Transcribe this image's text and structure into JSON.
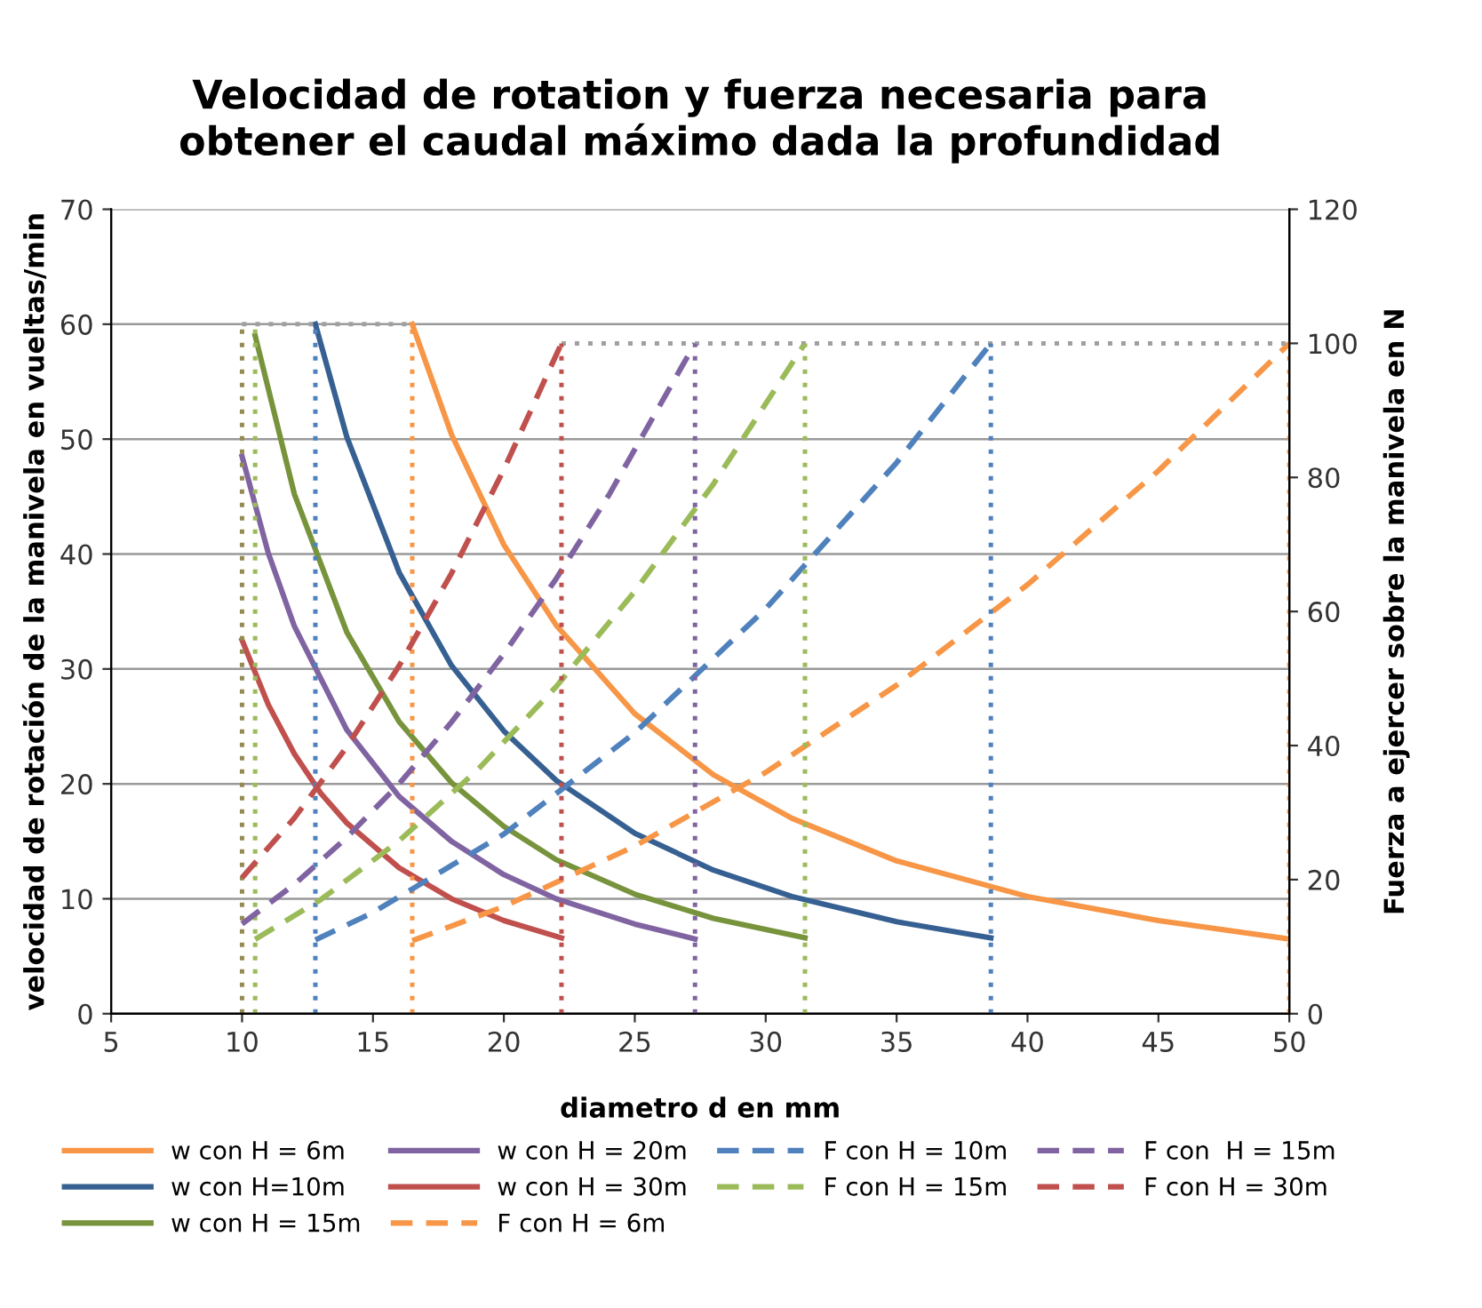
{
  "chart_data": {
    "type": "line",
    "title": "Velocidad de rotation y fuerza necesaria para\nobtener el caudal máximo dada la profundidad",
    "xlabel": "diametro d en mm",
    "ylabel": "velocidad de rotación de la manivela en vueltas/min",
    "y2label": "Fuerza a ejercer sobre la manivela en N",
    "xlim": [
      5,
      50
    ],
    "xticks": [
      5,
      10,
      15,
      20,
      25,
      30,
      35,
      40,
      45,
      50
    ],
    "ylim": [
      0,
      70
    ],
    "yticks": [
      0,
      10,
      20,
      30,
      40,
      50,
      60,
      70
    ],
    "y2lim": [
      0,
      120
    ],
    "y2ticks": [
      0,
      20,
      40,
      60,
      80,
      100,
      120
    ],
    "grid": "y",
    "legend": "bottom",
    "marker": "none",
    "series": [
      {
        "name": "w con H = 6m",
        "color": "#f79646",
        "line_style": "solid",
        "x": [
          16.5,
          18,
          20,
          22,
          25,
          28,
          31,
          35,
          40,
          45,
          50
        ],
        "values": [
          60,
          50.4,
          40.8,
          33.8,
          26.1,
          20.8,
          17.0,
          13.3,
          10.2,
          8.1,
          6.5
        ]
      },
      {
        "name": "w con H=10m",
        "color": "#376092",
        "line_style": "solid",
        "x": [
          12.8,
          14,
          16,
          18,
          20,
          22,
          25,
          28,
          31,
          35,
          38.6
        ],
        "values": [
          60,
          50.2,
          38.4,
          30.3,
          24.6,
          20.3,
          15.7,
          12.5,
          10.2,
          8.0,
          6.6
        ]
      },
      {
        "name": "w con H = 15m",
        "color": "#77933c",
        "line_style": "solid",
        "x": [
          10.5,
          12,
          14,
          16,
          18,
          20,
          22,
          25,
          28,
          31.5
        ],
        "values": [
          59,
          45.2,
          33.2,
          25.4,
          20.1,
          16.3,
          13.4,
          10.4,
          8.3,
          6.6
        ]
      },
      {
        "name": "w con H = 20m",
        "color": "#8064a2",
        "line_style": "solid",
        "x": [
          10,
          11,
          12,
          14,
          16,
          18,
          20,
          22,
          25,
          27.3
        ],
        "values": [
          48.5,
          40.1,
          33.7,
          24.7,
          18.9,
          15.0,
          12.1,
          10.0,
          7.8,
          6.5
        ]
      },
      {
        "name": "w con H = 30m",
        "color": "#c0504d",
        "line_style": "solid",
        "x": [
          10,
          11,
          12,
          13,
          14,
          16,
          18,
          20,
          22.2
        ],
        "values": [
          32.5,
          26.9,
          22.6,
          19.2,
          16.6,
          12.7,
          10.0,
          8.1,
          6.6
        ]
      },
      {
        "name": "F con H = 6m",
        "color": "#f79646",
        "line_style": "dashed",
        "axis": "y2",
        "x": [
          16.5,
          20,
          25,
          30,
          35,
          40,
          45,
          50
        ],
        "values": [
          10.9,
          16,
          25,
          36,
          49,
          64,
          81,
          100
        ]
      },
      {
        "name": "F con H = 10m",
        "color": "#4f81bd",
        "line_style": "dashed",
        "axis": "y2",
        "x": [
          12.8,
          15,
          20,
          25,
          30,
          35,
          38.6
        ],
        "values": [
          11,
          15.1,
          26.8,
          41.9,
          60.4,
          82.2,
          100
        ]
      },
      {
        "name": "F con H = 15m",
        "color": "#9bbb59",
        "line_style": "dashed",
        "axis": "y2",
        "x": [
          10.5,
          13,
          16,
          19,
          22,
          25,
          28,
          31.5
        ],
        "values": [
          11.1,
          17.0,
          25.8,
          36.4,
          48.8,
          63.0,
          79.0,
          100
        ]
      },
      {
        "name": "F con  H = 15m",
        "color": "#8064a2",
        "line_style": "dashed",
        "axis": "y2",
        "x": [
          10,
          12,
          14,
          16,
          18,
          20,
          22,
          24,
          27.3
        ],
        "values": [
          13.4,
          19.3,
          26.3,
          34.3,
          43.5,
          53.7,
          64.9,
          77.3,
          100
        ]
      },
      {
        "name": "F con H = 30m",
        "color": "#c0504d",
        "line_style": "dashed",
        "axis": "y2",
        "x": [
          10,
          12,
          14,
          16,
          18,
          20,
          22.2
        ],
        "values": [
          20.3,
          29.2,
          39.8,
          51.9,
          65.7,
          81.2,
          100
        ]
      },
      {
        "color": "#a0a0a0",
        "line_style": "dotted",
        "x": [
          10,
          16.5
        ],
        "values": [
          60,
          60
        ]
      },
      {
        "color": "#a0a0a0",
        "line_style": "dotted",
        "axis": "y2",
        "x": [
          22.2,
          50
        ],
        "values": [
          100,
          100
        ]
      },
      {
        "color": "#948a54",
        "line_style": "dotted",
        "x": [
          10,
          10
        ],
        "values": [
          0,
          60
        ]
      },
      {
        "color": "#9bbb59",
        "line_style": "dotted",
        "x": [
          10.5,
          10.5
        ],
        "values": [
          0,
          60
        ]
      },
      {
        "color": "#4f81bd",
        "line_style": "dotted",
        "x": [
          12.8,
          12.8
        ],
        "values": [
          0,
          60
        ]
      },
      {
        "color": "#f79646",
        "line_style": "dotted",
        "x": [
          16.5,
          16.5
        ],
        "values": [
          0,
          60
        ]
      },
      {
        "color": "#c0504d",
        "line_style": "dotted",
        "axis": "y2",
        "x": [
          22.2,
          22.2
        ],
        "values": [
          0,
          100
        ]
      },
      {
        "color": "#8064a2",
        "line_style": "dotted",
        "axis": "y2",
        "x": [
          27.3,
          27.3
        ],
        "values": [
          0,
          100
        ]
      },
      {
        "color": "#9bbb59",
        "line_style": "dotted",
        "axis": "y2",
        "x": [
          31.5,
          31.5
        ],
        "values": [
          0,
          100
        ]
      },
      {
        "color": "#4f81bd",
        "line_style": "dotted",
        "axis": "y2",
        "x": [
          38.6,
          38.6
        ],
        "values": [
          0,
          100
        ]
      },
      {
        "color": "#f79646",
        "line_style": "dotted",
        "axis": "y2",
        "x": [
          50,
          50
        ],
        "values": [
          0,
          100
        ]
      }
    ]
  }
}
